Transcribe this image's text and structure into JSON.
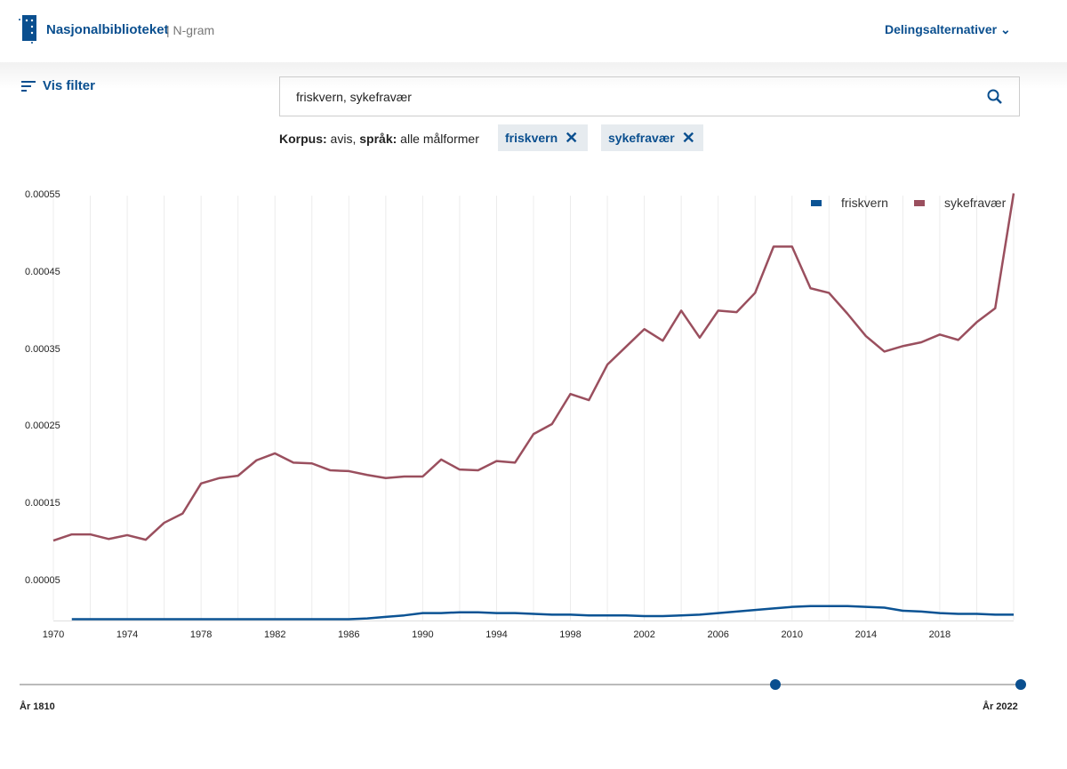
{
  "header": {
    "brand": "Nasjonalbiblioteket",
    "sub": "| N-gram",
    "share": "Delingsalternativer"
  },
  "filter": {
    "label": "Vis filter"
  },
  "search": {
    "value": "friskvern, sykefravær"
  },
  "korpus": {
    "k_label": "Korpus:",
    "k_value": " avis, ",
    "s_label": "språk:",
    "s_value": " alle målformer"
  },
  "chips": [
    {
      "label": "friskvern"
    },
    {
      "label": "sykefravær"
    }
  ],
  "slider": {
    "min_label": "År 1810",
    "max_label": "År 2022",
    "min": 1810,
    "max": 2022,
    "from": 1970,
    "to": 2022
  },
  "colors": {
    "friskvern": "#0b5394",
    "sykefravær": "#9a4f5e",
    "accent": "#0a4f8f"
  },
  "chart_data": {
    "type": "line",
    "xlim": [
      1970,
      2022
    ],
    "ylim": [
      0,
      0.00055
    ],
    "yticks": [
      "0.00055",
      "0.00045",
      "0.00035",
      "0.00025",
      "0.00015",
      "0.00005"
    ],
    "ytick_values": [
      0.00055,
      0.00045,
      0.00035,
      0.00025,
      0.00015,
      5e-05
    ],
    "xticks": [
      "1970",
      "1974",
      "1978",
      "1982",
      "1986",
      "1990",
      "1994",
      "1998",
      "2002",
      "2006",
      "2010",
      "2014",
      "2018"
    ],
    "legend": "top-right",
    "series": [
      {
        "name": "friskvern",
        "x": [
          1971,
          1975,
          1980,
          1984,
          1986,
          1987,
          1988,
          1989,
          1990,
          1991,
          1992,
          1993,
          1994,
          1995,
          1996,
          1997,
          1998,
          1999,
          2000,
          2001,
          2002,
          2003,
          2004,
          2005,
          2006,
          2007,
          2008,
          2009,
          2010,
          2011,
          2012,
          2013,
          2014,
          2015,
          2016,
          2017,
          2018,
          2019,
          2020,
          2021,
          2022
        ],
        "values": [
          1e-06,
          1e-06,
          1e-06,
          1e-06,
          1e-06,
          2e-06,
          4e-06,
          6e-06,
          9e-06,
          9e-06,
          1e-05,
          1e-05,
          9e-06,
          9e-06,
          8e-06,
          7e-06,
          7e-06,
          6e-06,
          6e-06,
          6e-06,
          5e-06,
          5e-06,
          6e-06,
          7e-06,
          9e-06,
          1.1e-05,
          1.3e-05,
          1.5e-05,
          1.7e-05,
          1.8e-05,
          1.8e-05,
          1.8e-05,
          1.7e-05,
          1.6e-05,
          1.2e-05,
          1.1e-05,
          9e-06,
          8e-06,
          8e-06,
          7e-06,
          7e-06
        ]
      },
      {
        "name": "sykefravær",
        "x": [
          1970,
          1971,
          1972,
          1973,
          1974,
          1975,
          1976,
          1977,
          1978,
          1979,
          1980,
          1981,
          1982,
          1983,
          1984,
          1985,
          1986,
          1987,
          1988,
          1989,
          1990,
          1991,
          1992,
          1993,
          1994,
          1995,
          1996,
          1997,
          1998,
          1999,
          2000,
          2001,
          2002,
          2003,
          2004,
          2005,
          2006,
          2007,
          2008,
          2009,
          2010,
          2011,
          2012,
          2013,
          2014,
          2015,
          2016,
          2017,
          2018,
          2019,
          2020,
          2021,
          2022
        ],
        "values": [
          0.000103,
          0.000111,
          0.000111,
          0.000105,
          0.00011,
          0.000104,
          0.000126,
          0.000138,
          0.000177,
          0.000184,
          0.000187,
          0.000207,
          0.000216,
          0.000204,
          0.000203,
          0.000194,
          0.000193,
          0.000188,
          0.000184,
          0.000186,
          0.000186,
          0.000208,
          0.000195,
          0.000194,
          0.000206,
          0.000204,
          0.000241,
          0.000254,
          0.000293,
          0.000285,
          0.000331,
          0.000354,
          0.000377,
          0.000362,
          0.000401,
          0.000366,
          0.000401,
          0.000399,
          0.000424,
          0.000484,
          0.000484,
          0.00043,
          0.000424,
          0.000397,
          0.000368,
          0.000348,
          0.000355,
          0.00036,
          0.00037,
          0.000363,
          0.000386,
          0.000404,
          0.000553
        ]
      }
    ]
  }
}
